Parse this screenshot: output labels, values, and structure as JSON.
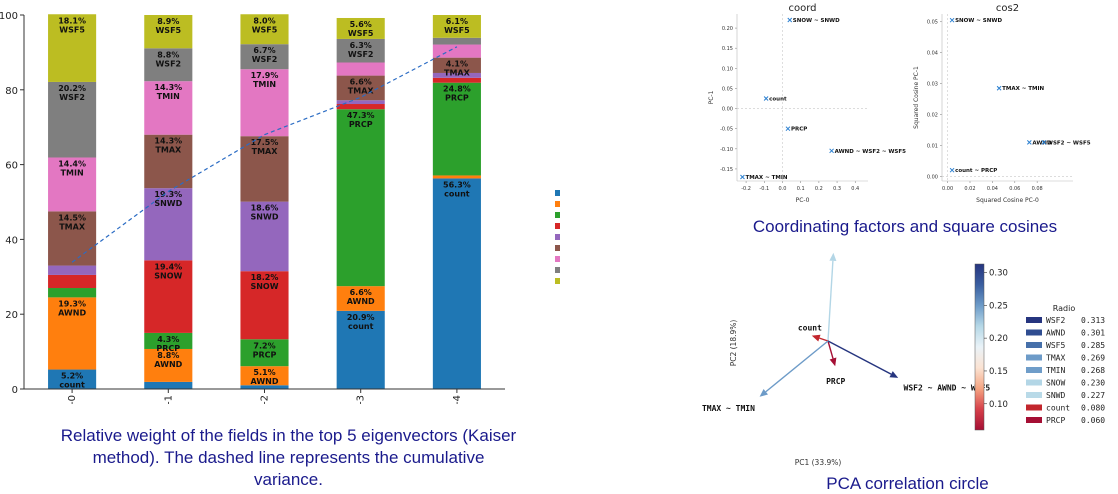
{
  "captions": {
    "stacked": "Relative weight of the fields in the top 5 eigenvectors (Kaiser method). The dashed line represents the cumulative variance.",
    "factors": "Coordinating factors and square cosines",
    "circle": "PCA correlation circle"
  },
  "chart_data": [
    {
      "type": "bar",
      "stacked": true,
      "categories": [
        "PC-0",
        "PC-1",
        "PC-2",
        "PC-3",
        "PC-4"
      ],
      "ylim": [
        0,
        100
      ],
      "yticks": [
        0,
        20,
        40,
        60,
        80,
        100
      ],
      "series": [
        {
          "name": "count",
          "color": "#1f77b4",
          "values": [
            5.2,
            1.9,
            1.0,
            20.9,
            56.3
          ]
        },
        {
          "name": "AWND",
          "color": "#ff7f0e",
          "values": [
            19.3,
            8.8,
            5.1,
            6.6,
            0.8
          ]
        },
        {
          "name": "PRCP",
          "color": "#2ca02c",
          "values": [
            2.5,
            4.3,
            7.2,
            47.3,
            24.8
          ]
        },
        {
          "name": "SNOW",
          "color": "#d62728",
          "values": [
            3.5,
            19.4,
            18.2,
            1.4,
            1.3
          ]
        },
        {
          "name": "SNWD",
          "color": "#9467bd",
          "values": [
            2.5,
            19.3,
            18.6,
            1.0,
            1.3
          ]
        },
        {
          "name": "TMAX",
          "color": "#8c564b",
          "values": [
            14.5,
            14.3,
            17.5,
            6.6,
            4.1
          ]
        },
        {
          "name": "TMIN",
          "color": "#e377c2",
          "values": [
            14.4,
            14.3,
            17.9,
            3.5,
            3.5
          ]
        },
        {
          "name": "WSF2",
          "color": "#7f7f7f",
          "values": [
            20.2,
            8.8,
            6.7,
            6.3,
            1.8
          ]
        },
        {
          "name": "WSF5",
          "color": "#bcbd22",
          "values": [
            18.1,
            8.9,
            8.0,
            5.6,
            6.1
          ]
        }
      ],
      "labels": [
        [
          [
            "5.2%",
            "count"
          ],
          [
            "19.3%",
            "AWND"
          ],
          [
            "14.5%",
            "TMAX"
          ],
          [
            "14.4%",
            "TMIN"
          ],
          [
            "20.2%",
            "WSF2"
          ],
          [
            "18.1%",
            "WSF5"
          ]
        ],
        [
          [
            "4.3%",
            "PRCP"
          ],
          [
            "8.8%",
            "AWND"
          ],
          [
            "19.4%",
            "SNOW"
          ],
          [
            "19.3%",
            "SNWD"
          ],
          [
            "14.3%",
            "TMAX"
          ],
          [
            "14.3%",
            "TMIN"
          ],
          [
            "8.8%",
            "WSF2"
          ],
          [
            "8.9%",
            "WSF5"
          ]
        ],
        [
          [
            "5.1%",
            "AWND"
          ],
          [
            "7.2%",
            "PRCP"
          ],
          [
            "18.2%",
            "SNOW"
          ],
          [
            "18.6%",
            "SNWD"
          ],
          [
            "17.5%",
            "TMAX"
          ],
          [
            "17.9%",
            "TMIN"
          ],
          [
            "6.7%",
            "WSF2"
          ],
          [
            "8.0%",
            "WSF5"
          ]
        ],
        [
          [
            "20.9%",
            "count"
          ],
          [
            "6.6%",
            "AWND"
          ],
          [
            "47.3%",
            "PRCP"
          ],
          [
            "6.6%",
            "TMAX"
          ],
          [
            "6.3%",
            "WSF2"
          ],
          [
            "5.6%",
            "WSF5"
          ]
        ],
        [
          [
            "56.3%",
            "count"
          ],
          [
            "24.8%",
            "PRCP"
          ],
          [
            "4.1%",
            "TMAX"
          ],
          [
            "6.1%",
            "WSF5"
          ]
        ]
      ],
      "cumulative_variance": [
        33.9,
        52.8,
        68.0,
        78.0,
        91.5
      ]
    },
    {
      "type": "scatter",
      "title": "coord",
      "xlabel": "PC-0",
      "ylabel": "PC-1",
      "xlim": [
        -0.25,
        0.47
      ],
      "ylim": [
        -0.18,
        0.235
      ],
      "xticks": [
        -0.2,
        -0.1,
        0.0,
        0.1,
        0.2,
        0.3,
        0.4
      ],
      "yticks": [
        -0.15,
        -0.1,
        -0.05,
        0.0,
        0.05,
        0.1,
        0.15,
        0.2
      ],
      "xtick_labels": [
        "-0.2",
        "-0.1",
        "0.0",
        "0.1",
        "0.2",
        "0.3",
        "0.4"
      ],
      "ytick_labels": [
        "-0.15",
        "-0.10",
        "-0.05",
        "0.00",
        "0.05",
        "0.10",
        "0.15",
        "0.20"
      ],
      "points": [
        {
          "label": "SNOW ~ SNWD",
          "x": 0.04,
          "y": 0.22
        },
        {
          "label": "count",
          "x": -0.09,
          "y": 0.025
        },
        {
          "label": "PRCP",
          "x": 0.03,
          "y": -0.05
        },
        {
          "label": "AWND ~ WSF2 ~ WSF5",
          "x": 0.27,
          "y": -0.105
        },
        {
          "label": "TMAX ~ TMIN",
          "x": -0.22,
          "y": -0.17
        }
      ]
    },
    {
      "type": "scatter",
      "title": "cos2",
      "xlabel": "Squared Cosine PC-0",
      "ylabel": "Squared Cosine PC-1",
      "xlim": [
        -0.005,
        0.112
      ],
      "ylim": [
        -0.0015,
        0.0525
      ],
      "xticks": [
        0.0,
        0.02,
        0.04,
        0.06,
        0.08
      ],
      "yticks": [
        0.0,
        0.01,
        0.02,
        0.03,
        0.04,
        0.05
      ],
      "xtick_labels": [
        "0.00",
        "0.02",
        "0.04",
        "0.06",
        "0.08"
      ],
      "ytick_labels": [
        "0.00",
        "0.01",
        "0.02",
        "0.03",
        "0.04",
        "0.05"
      ],
      "points": [
        {
          "label": "SNOW ~ SNWD",
          "x": 0.004,
          "y": 0.0505
        },
        {
          "label": "TMAX ~ TMIN",
          "x": 0.046,
          "y": 0.0285
        },
        {
          "label": "AWND",
          "x": 0.073,
          "y": 0.011
        },
        {
          "label": "WSF2 ~ WSF5",
          "x": 0.086,
          "y": 0.011
        },
        {
          "label": "count ~ PRCP",
          "x": 0.004,
          "y": 0.002
        }
      ]
    },
    {
      "type": "vector",
      "xlabel": "PC1 (33.9%)",
      "ylabel": "PC2 (18.9%)",
      "arrows": [
        {
          "label": "SNOW ~ SNWD",
          "x": 0.06,
          "y": 0.98
        },
        {
          "label": "count",
          "x": -0.18,
          "y": 0.06
        },
        {
          "label": "PRCP",
          "x": 0.08,
          "y": -0.28
        },
        {
          "label": "WSF2 ~ AWND ~ WSF5",
          "x": 0.78,
          "y": -0.41
        },
        {
          "label": "TMAX ~ TMIN",
          "x": -0.76,
          "y": -0.62
        }
      ],
      "colorbar": {
        "min": 0.06,
        "max": 0.313,
        "ticks": [
          0.1,
          0.15,
          0.2,
          0.25,
          0.3
        ],
        "tick_labels": [
          "0.10",
          "0.15",
          "0.20",
          "0.25",
          "0.30"
        ]
      },
      "legend": {
        "title": "Radio",
        "items": [
          {
            "name": "WSF2",
            "value": "0.313",
            "color": "#26357f"
          },
          {
            "name": "AWND",
            "value": "0.301",
            "color": "#2f4d91"
          },
          {
            "name": "WSF5",
            "value": "0.285",
            "color": "#4670aa"
          },
          {
            "name": "TMAX",
            "value": "0.269",
            "color": "#6d9bc8"
          },
          {
            "name": "TMIN",
            "value": "0.268",
            "color": "#6f9dc9"
          },
          {
            "name": "SNOW",
            "value": "0.230",
            "color": "#b3d6e6"
          },
          {
            "name": "SNWD",
            "value": "0.227",
            "color": "#b9dae8"
          },
          {
            "name": "count",
            "value": "0.080",
            "color": "#c2262d"
          },
          {
            "name": "PRCP",
            "value": "0.060",
            "color": "#a50f34"
          }
        ]
      }
    }
  ]
}
